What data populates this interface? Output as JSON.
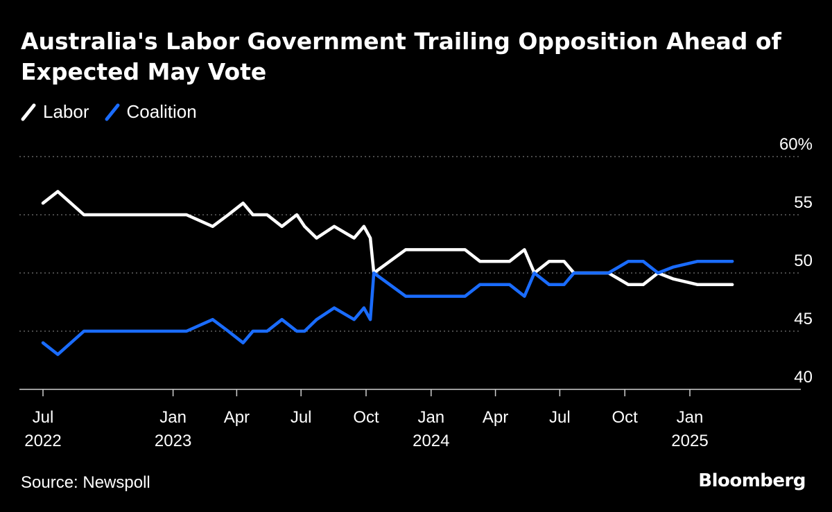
{
  "header": {
    "title": "Australia's Labor Government Trailing Opposition Ahead of Expected May Vote"
  },
  "colors": {
    "background": "#000000",
    "labor": "#ffffff",
    "coalition": "#1a6cff",
    "grid": "#777777",
    "text": "#ffffff"
  },
  "footer": {
    "source": "Source: Newspoll",
    "brand": "Bloomberg"
  },
  "chart_data": {
    "type": "line",
    "title": "Australia's Labor Government Trailing Opposition Ahead of Expected May Vote",
    "xlabel": "",
    "ylabel": "",
    "ylim": [
      40,
      60
    ],
    "grid": true,
    "legend_position": "top-left",
    "y_ticks": [
      {
        "value": 60,
        "label": "60%"
      },
      {
        "value": 55,
        "label": "55"
      },
      {
        "value": 50,
        "label": "50"
      },
      {
        "value": 45,
        "label": "45"
      },
      {
        "value": 40,
        "label": "40"
      }
    ],
    "x_ticks": [
      {
        "date": "2022-07-01",
        "label": "Jul",
        "year": "2022"
      },
      {
        "date": "2023-01-01",
        "label": "Jan",
        "year": "2023"
      },
      {
        "date": "2023-04-01",
        "label": "Apr",
        "year": ""
      },
      {
        "date": "2023-07-01",
        "label": "Jul",
        "year": ""
      },
      {
        "date": "2023-10-01",
        "label": "Oct",
        "year": ""
      },
      {
        "date": "2024-01-01",
        "label": "Jan",
        "year": "2024"
      },
      {
        "date": "2024-04-01",
        "label": "Apr",
        "year": ""
      },
      {
        "date": "2024-07-01",
        "label": "Jul",
        "year": ""
      },
      {
        "date": "2024-10-01",
        "label": "Oct",
        "year": ""
      },
      {
        "date": "2025-01-01",
        "label": "Jan",
        "year": "2025"
      }
    ],
    "x": [
      "2022-07-01",
      "2022-07-22",
      "2022-08-28",
      "2022-11-01",
      "2022-12-15",
      "2023-01-20",
      "2023-02-26",
      "2023-03-20",
      "2023-04-10",
      "2023-04-24",
      "2023-05-14",
      "2023-06-04",
      "2023-06-25",
      "2023-07-06",
      "2023-07-23",
      "2023-08-17",
      "2023-09-14",
      "2023-09-28",
      "2023-10-07",
      "2023-10-12",
      "2023-11-26",
      "2023-12-09",
      "2024-01-10",
      "2024-02-18",
      "2024-03-10",
      "2024-03-31",
      "2024-04-21",
      "2024-05-12",
      "2024-05-26",
      "2024-06-16",
      "2024-07-07",
      "2024-07-21",
      "2024-08-11",
      "2024-09-08",
      "2024-10-06",
      "2024-10-27",
      "2024-11-17",
      "2024-12-08",
      "2025-01-12",
      "2025-02-09",
      "2025-03-02"
    ],
    "series": [
      {
        "name": "Labor",
        "values": [
          56,
          57,
          55,
          55,
          55,
          55,
          54,
          55,
          56,
          55,
          55,
          54,
          55,
          54,
          53,
          54,
          53,
          54,
          53,
          50,
          52,
          52,
          52,
          52,
          51,
          51,
          51,
          52,
          50,
          51,
          51,
          50,
          50,
          50,
          49,
          49,
          50,
          49.5,
          49,
          49,
          49
        ]
      },
      {
        "name": "Coalition",
        "values": [
          44,
          43,
          45,
          45,
          45,
          45,
          46,
          45,
          44,
          45,
          45,
          46,
          45,
          45,
          46,
          47,
          46,
          47,
          46,
          50,
          48,
          48,
          48,
          48,
          49,
          49,
          49,
          48,
          50,
          49,
          49,
          50,
          50,
          50,
          51,
          51,
          50,
          50.5,
          51,
          51,
          51
        ]
      }
    ]
  }
}
